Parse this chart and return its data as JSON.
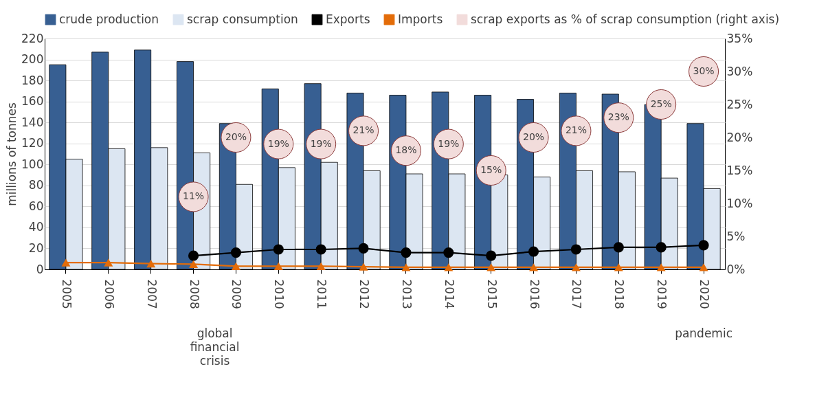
{
  "chart_data": {
    "type": "bar",
    "categories": [
      "2005",
      "2006",
      "2007",
      "2008",
      "2009",
      "2010",
      "2011",
      "2012",
      "2013",
      "2014",
      "2015",
      "2016",
      "2017",
      "2018",
      "2019",
      "2020"
    ],
    "ylabel": "millions of tonnes",
    "ylim": [
      0,
      220
    ],
    "yticks": [
      0,
      20,
      40,
      60,
      80,
      100,
      120,
      140,
      160,
      180,
      200,
      220
    ],
    "y2lim": [
      0,
      35
    ],
    "y2ticks": [
      {
        "value": 0,
        "label": "0%"
      },
      {
        "value": 5,
        "label": "5%"
      },
      {
        "value": 10,
        "label": "10%"
      },
      {
        "value": 15,
        "label": "15%"
      },
      {
        "value": 20,
        "label": "20%"
      },
      {
        "value": 25,
        "label": "25%"
      },
      {
        "value": 30,
        "label": "30%"
      },
      {
        "value": 35,
        "label": "35%"
      }
    ],
    "grid": "y",
    "legend": "top",
    "annotations": [
      "global financial crisis",
      "pandemic"
    ],
    "series": [
      {
        "name": "crude production",
        "color": "#375f92",
        "values": [
          195,
          207,
          209,
          198,
          139,
          172,
          177,
          168,
          166,
          169,
          166,
          162,
          168,
          167,
          157,
          139
        ]
      },
      {
        "name": "scrap consumption",
        "color": "#dce6f2",
        "values": [
          105,
          115,
          116,
          111,
          81,
          97,
          102,
          94,
          91,
          91,
          90,
          88,
          94,
          93,
          87,
          77
        ]
      },
      {
        "name": "Exports",
        "type": "line",
        "marker": "circle",
        "color": "#000000",
        "values": [
          null,
          null,
          null,
          13,
          16,
          19,
          19,
          20,
          16,
          16,
          13,
          17,
          19,
          21,
          21,
          23
        ]
      },
      {
        "name": "Imports",
        "type": "line",
        "marker": "triangle",
        "color": "#e36c09",
        "values": [
          6.5,
          6.5,
          5.5,
          5,
          3,
          3,
          3,
          2.5,
          2,
          2,
          2,
          2,
          2,
          2,
          2,
          2
        ]
      },
      {
        "name": "scrap exports as % of scrap consumption (right axis)",
        "type": "scatter",
        "marker": "circle",
        "axis": "y2",
        "color": "#f2dcdb",
        "values": [
          null,
          null,
          null,
          11,
          20,
          19,
          19,
          21,
          18,
          19,
          15,
          20,
          21,
          23,
          25,
          30
        ],
        "value_labels": [
          null,
          null,
          null,
          "11%",
          "20%",
          "19%",
          "19%",
          "21%",
          "18%",
          "19%",
          "15%",
          "20%",
          "21%",
          "23%",
          "25%",
          "30%"
        ]
      }
    ]
  }
}
